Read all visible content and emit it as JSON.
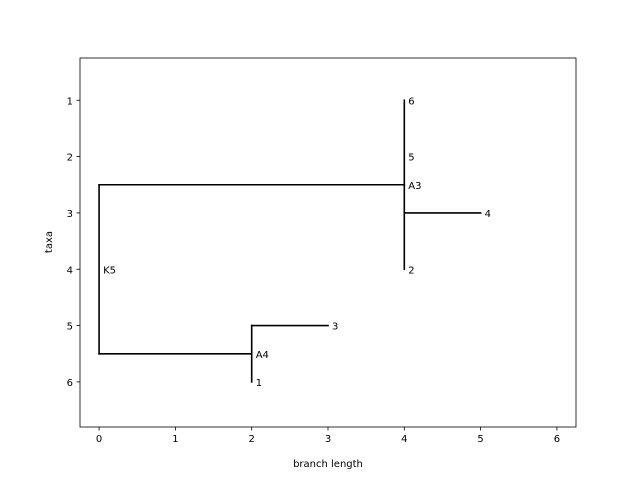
{
  "chart_data": {
    "type": "tree",
    "xlabel": "branch length",
    "ylabel": "taxa",
    "xlim": [
      -0.25,
      6.25
    ],
    "ylim": [
      6.8,
      0.25
    ],
    "xticks": [
      "0",
      "1",
      "2",
      "3",
      "4",
      "5",
      "6"
    ],
    "yticks": [
      "1",
      "2",
      "3",
      "4",
      "5",
      "6"
    ],
    "grid": false,
    "branches": [
      {
        "name": "root-vertical",
        "x1": 0,
        "y1": 2.5,
        "x2": 0,
        "y2": 5.5
      },
      {
        "name": "root-to-A3",
        "x1": 0,
        "y1": 2.5,
        "x2": 4,
        "y2": 2.5
      },
      {
        "name": "root-to-A4",
        "x1": 0,
        "y1": 5.5,
        "x2": 2,
        "y2": 5.5
      },
      {
        "name": "A3-vertical",
        "x1": 4,
        "y1": 1,
        "x2": 4,
        "y2": 4
      },
      {
        "name": "A3-to-4",
        "x1": 4,
        "y1": 3,
        "x2": 5,
        "y2": 3
      },
      {
        "name": "A4-vertical",
        "x1": 2,
        "y1": 5,
        "x2": 2,
        "y2": 6
      },
      {
        "name": "A4-to-3",
        "x1": 2,
        "y1": 5,
        "x2": 3,
        "y2": 5
      }
    ],
    "labels": [
      {
        "text": "6",
        "x": 4,
        "y": 1
      },
      {
        "text": "5",
        "x": 4,
        "y": 2
      },
      {
        "text": "A3",
        "x": 4,
        "y": 2.5
      },
      {
        "text": "4",
        "x": 5,
        "y": 3
      },
      {
        "text": "2",
        "x": 4,
        "y": 4
      },
      {
        "text": "K5",
        "x": 0,
        "y": 4
      },
      {
        "text": "3",
        "x": 3,
        "y": 5
      },
      {
        "text": "A4",
        "x": 2,
        "y": 5.5
      },
      {
        "text": "1",
        "x": 2,
        "y": 6
      }
    ]
  }
}
